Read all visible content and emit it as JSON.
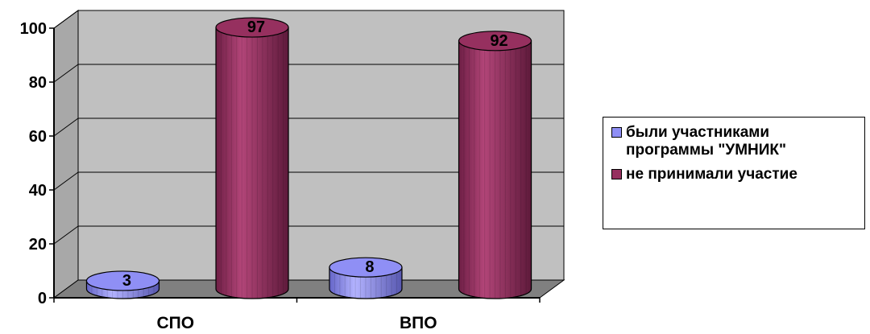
{
  "chart_data": {
    "type": "bar",
    "title": "",
    "xlabel": "",
    "ylabel": "",
    "categories": [
      "СПО",
      "ВПО"
    ],
    "series": [
      {
        "name": "были участниками программы \"УМНИК\"",
        "values": [
          3,
          8
        ],
        "color": "#8F8FF5"
      },
      {
        "name": "не принимали участие",
        "values": [
          97,
          92
        ],
        "color": "#96305F"
      }
    ],
    "ylim": [
      0,
      100
    ],
    "yticks": [
      "0",
      "20",
      "40",
      "60",
      "80",
      "100"
    ],
    "data_labels": [
      "3",
      "97",
      "8",
      "92"
    ],
    "grid": true,
    "legend_position": "right",
    "style": "3d-cylinder",
    "wall_color": "#C0C0C0",
    "floor_color": "#808080"
  }
}
